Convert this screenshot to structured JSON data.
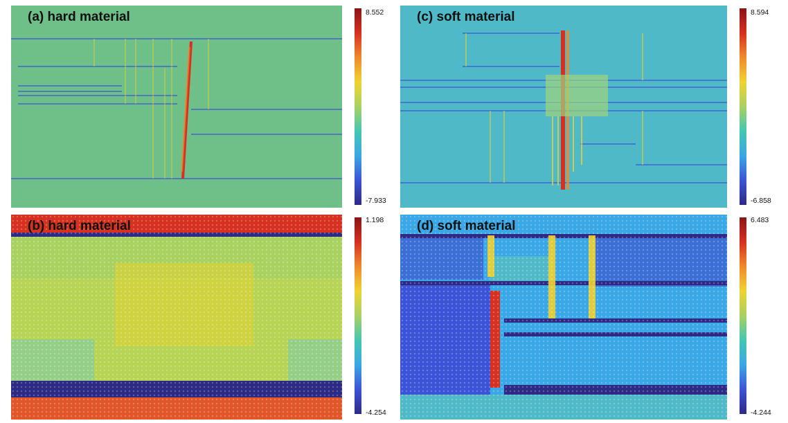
{
  "panels": [
    {
      "title": "(a) hard material",
      "colorbar_max": "8.552",
      "colorbar_min": "-7.933"
    },
    {
      "title": "(b) hard material",
      "colorbar_max": "1.198",
      "colorbar_min": "-4.254"
    },
    {
      "title": "(c) soft material",
      "colorbar_max": "8.594",
      "colorbar_min": "-6.858"
    },
    {
      "title": "(d) soft material",
      "colorbar_max": "6.483",
      "colorbar_min": "-4.244"
    }
  ],
  "colormap": [
    "#2d2a86",
    "#3b53d6",
    "#3aa7e6",
    "#43c7b3",
    "#a8d162",
    "#f0d230",
    "#f08a2a",
    "#d63020",
    "#8a1416"
  ]
}
